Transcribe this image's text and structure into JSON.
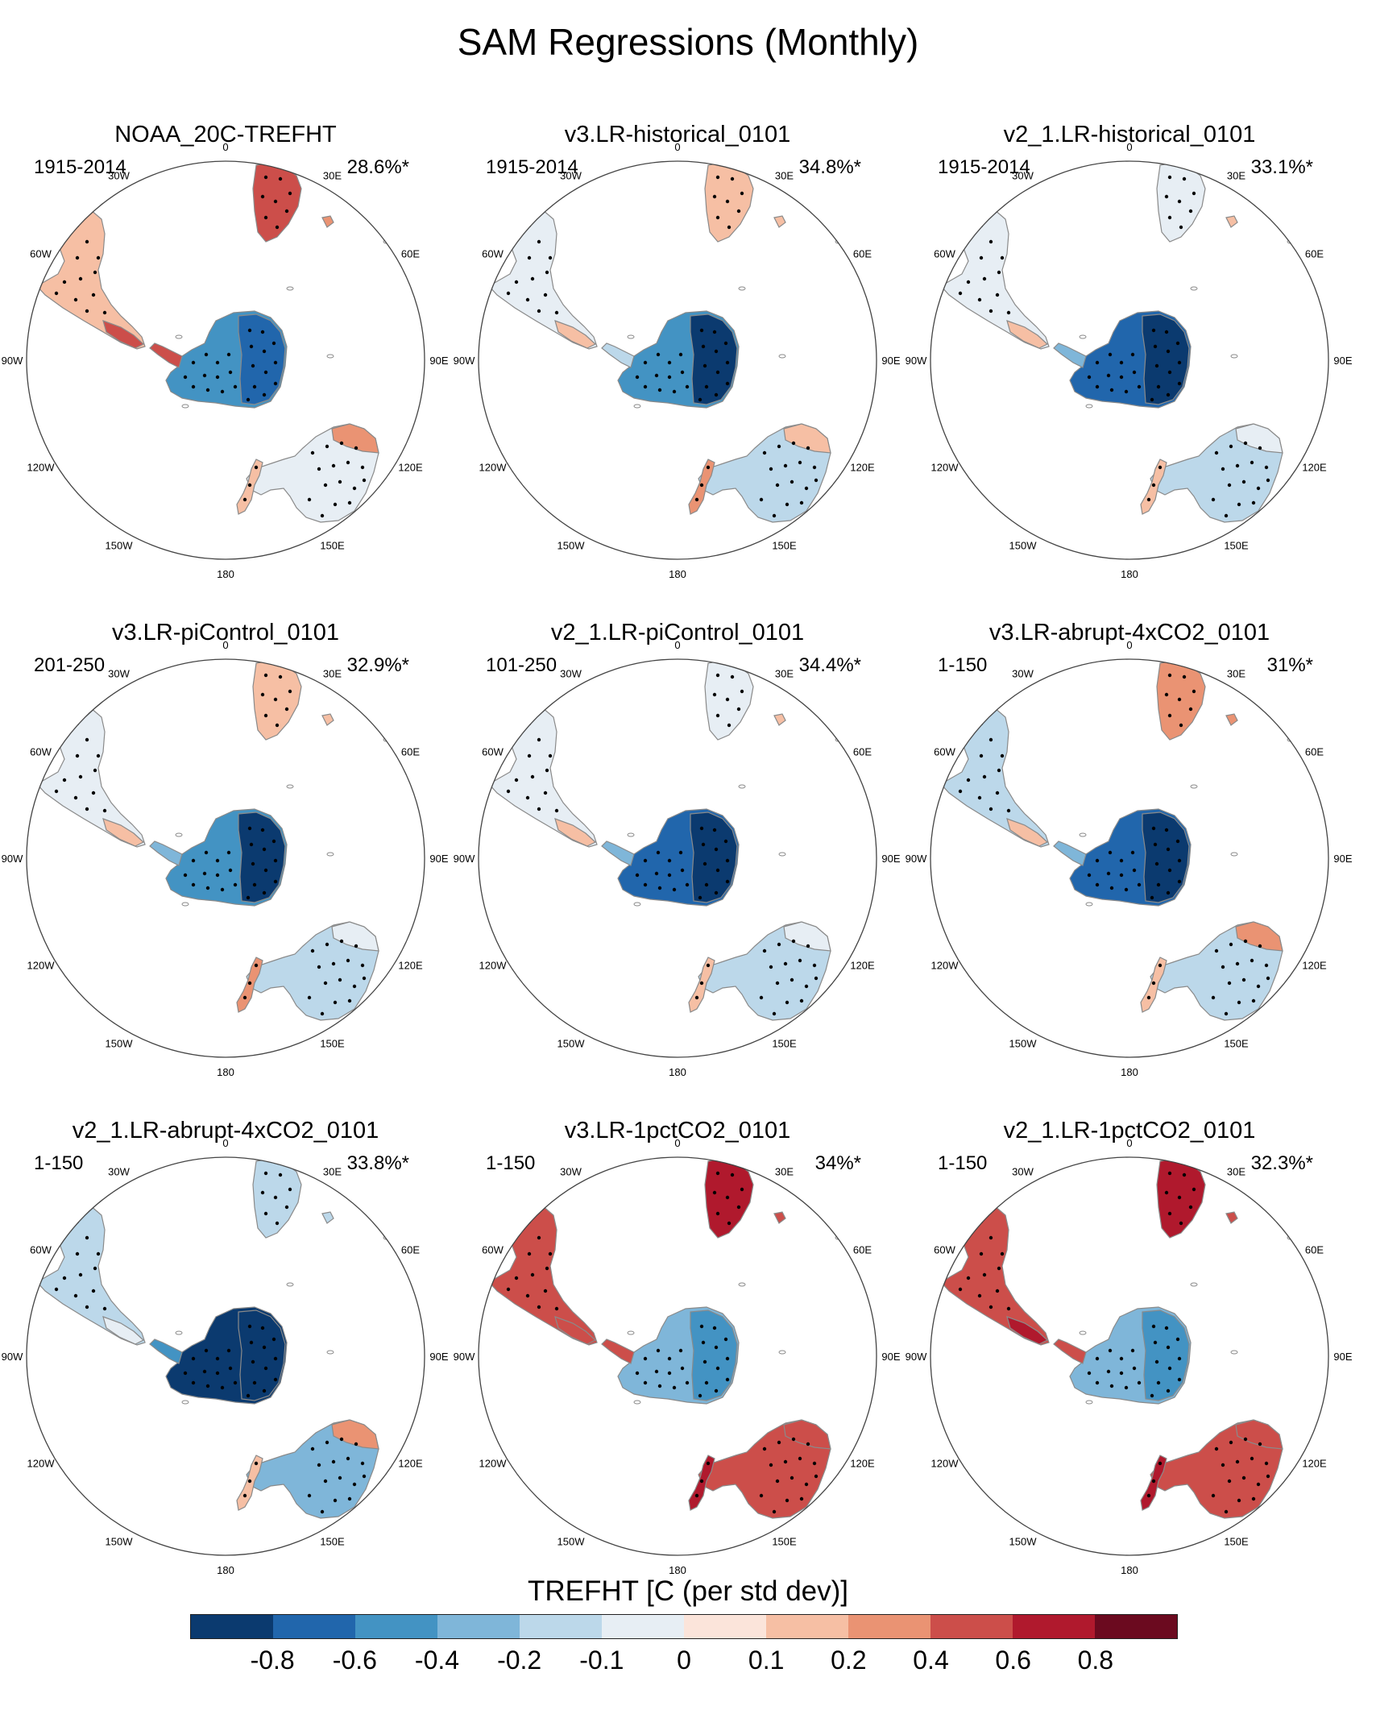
{
  "title": "SAM Regressions (Monthly)",
  "lon_labels": [
    "0",
    "30E",
    "60E",
    "90E",
    "120E",
    "150E",
    "180",
    "150W",
    "120W",
    "90W",
    "60W",
    "30W"
  ],
  "panels": [
    {
      "title": "NOAA_20C-TREFHT",
      "period": "1915-2014",
      "percent": "28.6%*",
      "values": {
        "antarctica": -0.6,
        "east_antarctica": -0.8,
        "peninsula": 0.4,
        "south_america": 0.1,
        "patagonia": 0.4,
        "africa": 0.4,
        "australia": -0.1,
        "australia_north": 0.2,
        "new_zealand": 0.1,
        "madagascar": 0.2
      }
    },
    {
      "title": "v3.LR-historical_0101",
      "period": "1915-2014",
      "percent": "34.8%*",
      "values": {
        "antarctica": -0.6,
        "east_antarctica": -0.9,
        "peninsula": -0.2,
        "south_america": -0.1,
        "patagonia": 0.1,
        "africa": 0.1,
        "australia": -0.2,
        "australia_north": 0.1,
        "new_zealand": 0.2,
        "madagascar": 0.1
      }
    },
    {
      "title": "v2_1.LR-historical_0101",
      "period": "1915-2014",
      "percent": "33.1%*",
      "values": {
        "antarctica": -0.8,
        "east_antarctica": -0.9,
        "peninsula": -0.4,
        "south_america": -0.1,
        "patagonia": 0.1,
        "africa": -0.1,
        "australia": -0.2,
        "australia_north": -0.1,
        "new_zealand": 0.1,
        "madagascar": 0.1
      }
    },
    {
      "title": "v3.LR-piControl_0101",
      "period": "201-250",
      "percent": "32.9%*",
      "values": {
        "antarctica": -0.6,
        "east_antarctica": -0.9,
        "peninsula": -0.4,
        "south_america": -0.1,
        "patagonia": 0.1,
        "africa": 0.1,
        "australia": -0.2,
        "australia_north": -0.1,
        "new_zealand": 0.2,
        "madagascar": 0.1
      }
    },
    {
      "title": "v2_1.LR-piControl_0101",
      "period": "101-250",
      "percent": "34.4%*",
      "values": {
        "antarctica": -0.8,
        "east_antarctica": -0.9,
        "peninsula": -0.4,
        "south_america": -0.1,
        "patagonia": 0.1,
        "africa": -0.1,
        "australia": -0.2,
        "australia_north": -0.1,
        "new_zealand": 0.1,
        "madagascar": 0.1
      }
    },
    {
      "title": "v3.LR-abrupt-4xCO2_0101",
      "period": "1-150",
      "percent": "31%*",
      "values": {
        "antarctica": -0.8,
        "east_antarctica": -0.9,
        "peninsula": -0.4,
        "south_america": -0.2,
        "patagonia": 0.1,
        "africa": 0.2,
        "australia": -0.2,
        "australia_north": 0.2,
        "new_zealand": 0.1,
        "madagascar": 0.2
      }
    },
    {
      "title": "v2_1.LR-abrupt-4xCO2_0101",
      "period": "1-150",
      "percent": "33.8%*",
      "values": {
        "antarctica": -0.9,
        "east_antarctica": -0.9,
        "peninsula": -0.6,
        "south_america": -0.2,
        "patagonia": -0.1,
        "africa": -0.2,
        "australia": -0.4,
        "australia_north": 0.2,
        "new_zealand": 0.1,
        "madagascar": -0.2
      }
    },
    {
      "title": "v3.LR-1pctCO2_0101",
      "period": "1-150",
      "percent": "34%*",
      "values": {
        "antarctica": -0.4,
        "east_antarctica": -0.6,
        "peninsula": 0.4,
        "south_america": 0.4,
        "patagonia": 0.4,
        "africa": 0.6,
        "australia": 0.4,
        "australia_north": 0.4,
        "new_zealand": 0.6,
        "madagascar": 0.4
      }
    },
    {
      "title": "v2_1.LR-1pctCO2_0101",
      "period": "1-150",
      "percent": "32.3%*",
      "values": {
        "antarctica": -0.4,
        "east_antarctica": -0.6,
        "peninsula": 0.4,
        "south_america": 0.4,
        "patagonia": 0.6,
        "africa": 0.6,
        "australia": 0.4,
        "australia_north": 0.4,
        "new_zealand": 0.6,
        "madagascar": 0.4
      }
    }
  ],
  "colorbar": {
    "title": "TREFHT [C (per std dev)]",
    "labels": [
      "-0.8",
      "-0.6",
      "-0.4",
      "-0.2",
      "-0.1",
      "0",
      "0.1",
      "0.2",
      "0.4",
      "0.6",
      "0.8"
    ],
    "bounds": [
      -0.8,
      -0.6,
      -0.4,
      -0.2,
      -0.1,
      0,
      0.1,
      0.2,
      0.4,
      0.6,
      0.8
    ],
    "colors": [
      "#0b3a6f",
      "#2166ac",
      "#4393c3",
      "#7fb6d9",
      "#bcd8ea",
      "#e7eef4",
      "#fbe4da",
      "#f6bfa4",
      "#ea9373",
      "#cc4e4a",
      "#b0192d",
      "#6b0a1f"
    ]
  }
}
